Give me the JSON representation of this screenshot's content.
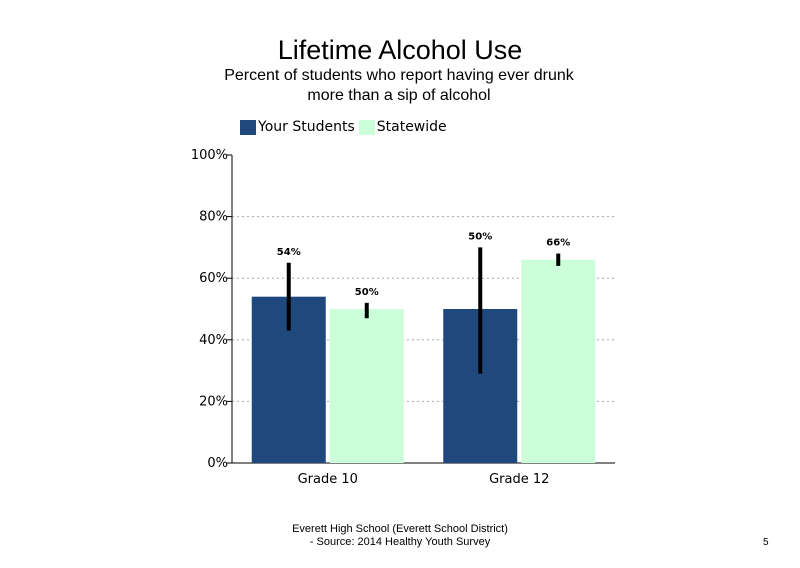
{
  "slide": {
    "footer_line1": "Everett High School (Everett School District)",
    "footer_line2": "- Source: 2014 Healthy Youth Survey",
    "page_number": "5"
  },
  "colors": {
    "your_students": "#1F497D",
    "statewide": "#CCFFD9",
    "error_bar": "#000000",
    "gridline": "#AAAAAA"
  },
  "chart_data": {
    "type": "bar",
    "title": "Lifetime Alcohol Use",
    "subtitle_lines": [
      "Percent of students who report having ever drunk",
      "more than a sip of alcohol"
    ],
    "categories": [
      "Grade 10",
      "Grade 12"
    ],
    "series": [
      {
        "name": "Your Students",
        "values": [
          54,
          50
        ],
        "labels": [
          "54%",
          "50%"
        ],
        "error_low": [
          43,
          29
        ],
        "error_high": [
          65,
          70
        ]
      },
      {
        "name": "Statewide",
        "values": [
          50,
          66
        ],
        "labels": [
          "50%",
          "66%"
        ],
        "error_low": [
          47,
          64
        ],
        "error_high": [
          52,
          68
        ]
      }
    ],
    "ylim": [
      0,
      100
    ],
    "yticks": [
      0,
      20,
      40,
      60,
      80,
      100
    ],
    "ytick_labels": [
      "0%",
      "20%",
      "40%",
      "60%",
      "80%",
      "100%"
    ],
    "gridlines": true,
    "legend_position": "top-left"
  }
}
